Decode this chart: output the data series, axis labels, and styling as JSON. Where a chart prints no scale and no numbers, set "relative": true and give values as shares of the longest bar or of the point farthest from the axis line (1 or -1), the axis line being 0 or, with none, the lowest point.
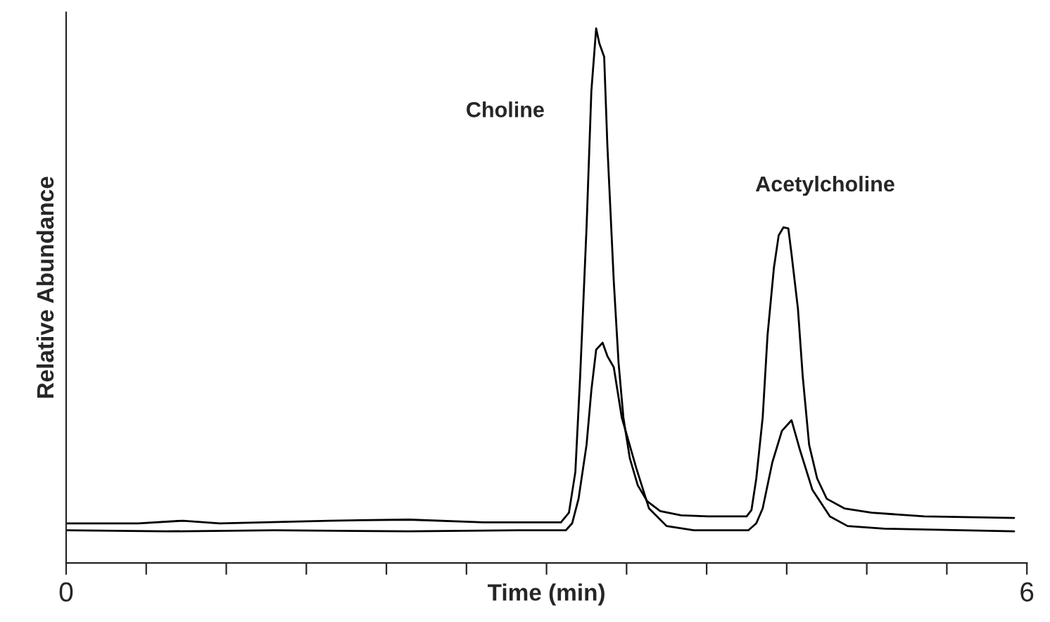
{
  "chart_data": {
    "type": "line",
    "relative": true,
    "xlabel": "Time (min)",
    "ylabel": "Relative Abundance",
    "xlim": [
      0,
      6
    ],
    "xticks": [
      0,
      {
        "value": 0.5,
        "label": null
      },
      {
        "value": 1,
        "label": null
      },
      {
        "value": 1.5,
        "label": null
      },
      {
        "value": 2,
        "label": null
      },
      {
        "value": 2.5,
        "label": null
      },
      {
        "value": 3,
        "label": null
      },
      {
        "value": 3.5,
        "label": null
      },
      {
        "value": 4,
        "label": null
      },
      {
        "value": 4.5,
        "label": null
      },
      {
        "value": 5,
        "label": null
      },
      {
        "value": 5.5,
        "label": null
      },
      6
    ],
    "grid": false,
    "legend": false,
    "annotations": [
      "Choline",
      "Acetylcholine"
    ],
    "series": [
      {
        "color": "#000000",
        "x": [
          0,
          0.45,
          0.73,
          0.96,
          1.64,
          2.14,
          2.61,
          3.09,
          3.14,
          3.18,
          3.21,
          3.25,
          3.28,
          3.31,
          3.33,
          3.36,
          3.38,
          3.42,
          3.45,
          3.48,
          3.52,
          3.57,
          3.63,
          3.71,
          3.84,
          4.01,
          4.25,
          4.28,
          4.31,
          4.35,
          4.38,
          4.42,
          4.45,
          4.48,
          4.51,
          4.53,
          4.57,
          4.6,
          4.64,
          4.69,
          4.75,
          4.86,
          5.03,
          5.36,
          5.92
        ],
        "values": [
          0.074,
          0.074,
          0.079,
          0.074,
          0.079,
          0.081,
          0.076,
          0.076,
          0.094,
          0.17,
          0.349,
          0.628,
          0.883,
          1.0,
          0.972,
          0.947,
          0.781,
          0.527,
          0.374,
          0.272,
          0.196,
          0.145,
          0.115,
          0.097,
          0.089,
          0.087,
          0.087,
          0.099,
          0.158,
          0.272,
          0.425,
          0.552,
          0.613,
          0.628,
          0.626,
          0.578,
          0.476,
          0.349,
          0.221,
          0.158,
          0.12,
          0.102,
          0.094,
          0.087,
          0.084
        ]
      },
      {
        "color": "#000000",
        "x": [
          0,
          0.62,
          1.3,
          2.14,
          2.82,
          3.12,
          3.16,
          3.2,
          3.25,
          3.28,
          3.31,
          3.35,
          3.38,
          3.42,
          3.47,
          3.56,
          3.64,
          3.75,
          3.92,
          4.26,
          4.31,
          4.35,
          4.41,
          4.47,
          4.53,
          4.58,
          4.66,
          4.77,
          4.88,
          5.11,
          5.92
        ],
        "values": [
          0.061,
          0.059,
          0.061,
          0.059,
          0.061,
          0.061,
          0.074,
          0.12,
          0.221,
          0.323,
          0.399,
          0.412,
          0.387,
          0.366,
          0.272,
          0.178,
          0.102,
          0.069,
          0.061,
          0.061,
          0.074,
          0.102,
          0.188,
          0.247,
          0.267,
          0.214,
          0.137,
          0.087,
          0.069,
          0.064,
          0.059
        ]
      }
    ]
  }
}
